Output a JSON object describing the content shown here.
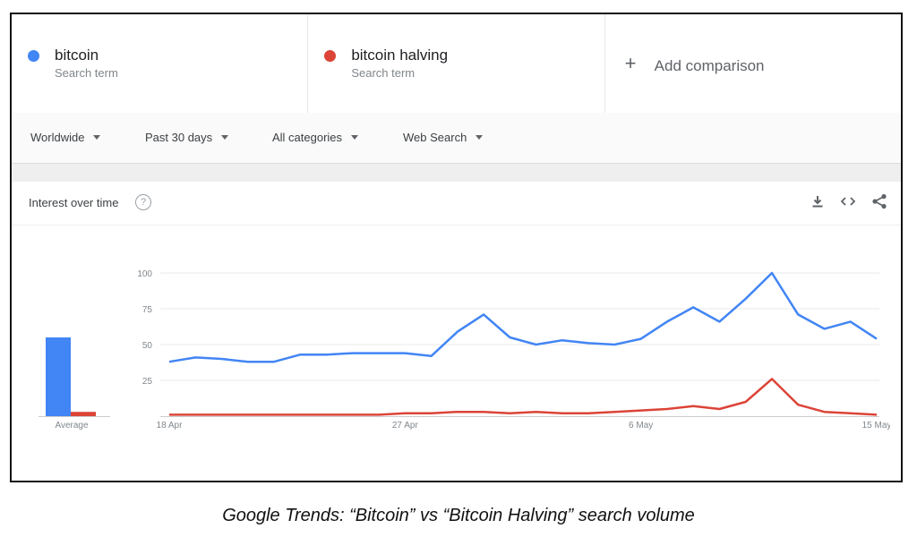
{
  "colors": {
    "bitcoin": "#4285f4",
    "halving": "#db4437",
    "grid": "#e8e8e8"
  },
  "terms": [
    {
      "name": "bitcoin",
      "sub": "Search term",
      "color": "#4285f4"
    },
    {
      "name": "bitcoin halving",
      "sub": "Search term",
      "color": "#db4437"
    }
  ],
  "add_comparison": {
    "label": "Add comparison",
    "icon": "plus-icon"
  },
  "filters": [
    {
      "label": "Worldwide"
    },
    {
      "label": "Past 30 days"
    },
    {
      "label": "All categories"
    },
    {
      "label": "Web Search"
    }
  ],
  "card": {
    "title": "Interest over time",
    "help_icon": "question-icon",
    "tools": [
      "download-icon",
      "embed-icon",
      "share-icon"
    ]
  },
  "chart_data": [
    {
      "type": "bar",
      "categories": [
        "Average"
      ],
      "series": [
        {
          "name": "bitcoin",
          "values": [
            55
          ]
        },
        {
          "name": "bitcoin halving",
          "values": [
            3
          ]
        }
      ],
      "ylim": [
        0,
        100
      ]
    },
    {
      "type": "line",
      "x": [
        "18 Apr",
        "19 Apr",
        "20 Apr",
        "21 Apr",
        "22 Apr",
        "23 Apr",
        "24 Apr",
        "25 Apr",
        "26 Apr",
        "27 Apr",
        "28 Apr",
        "29 Apr",
        "30 Apr",
        "1 May",
        "2 May",
        "3 May",
        "4 May",
        "5 May",
        "6 May",
        "7 May",
        "8 May",
        "9 May",
        "10 May",
        "11 May",
        "12 May",
        "13 May",
        "14 May",
        "15 May"
      ],
      "series": [
        {
          "name": "bitcoin",
          "values": [
            38,
            41,
            40,
            38,
            38,
            43,
            43,
            44,
            44,
            44,
            42,
            59,
            71,
            55,
            50,
            53,
            51,
            50,
            54,
            66,
            76,
            66,
            82,
            100,
            71,
            61,
            66,
            54
          ]
        },
        {
          "name": "bitcoin halving",
          "values": [
            1,
            1,
            1,
            1,
            1,
            1,
            1,
            1,
            1,
            2,
            2,
            3,
            3,
            2,
            3,
            2,
            2,
            3,
            4,
            5,
            7,
            5,
            10,
            26,
            8,
            3,
            2,
            1
          ]
        }
      ],
      "yticks": [
        "100",
        "75",
        "50",
        "25"
      ],
      "xticks": [
        "18 Apr",
        "27 Apr",
        "6 May",
        "15 May"
      ],
      "ylim": [
        0,
        100
      ],
      "grid": true
    }
  ],
  "caption": "Google Trends: “Bitcoin” vs “Bitcoin Halving” search volume"
}
